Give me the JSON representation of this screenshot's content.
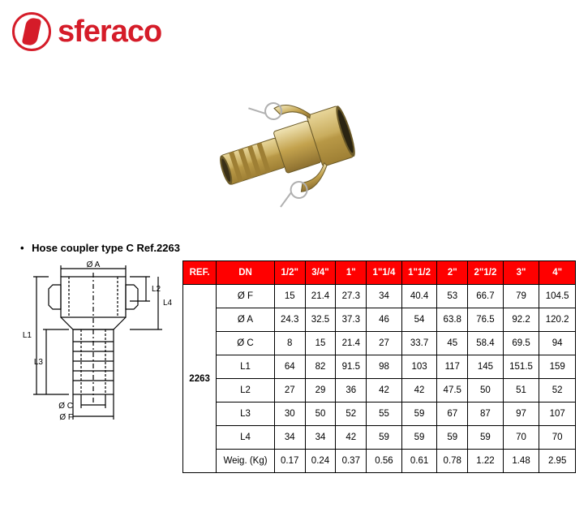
{
  "brand": "sferaco",
  "title": "Hose coupler type C Ref.2263",
  "colors": {
    "brand": "#d51c29",
    "header_bg": "#ff0000",
    "header_fg": "#ffffff",
    "border": "#000000"
  },
  "table": {
    "headers": [
      "REF.",
      "DN",
      "1/2\"",
      "3/4\"",
      "1\"",
      "1\"1/4",
      "1\"1/2",
      "2\"",
      "2\"1/2",
      "3\"",
      "4\""
    ],
    "ref": "2263",
    "rows": [
      {
        "label": "Ø F",
        "values": [
          "15",
          "21.4",
          "27.3",
          "34",
          "40.4",
          "53",
          "66.7",
          "79",
          "104.5"
        ]
      },
      {
        "label": "Ø A",
        "values": [
          "24.3",
          "32.5",
          "37.3",
          "46",
          "54",
          "63.8",
          "76.5",
          "92.2",
          "120.2"
        ]
      },
      {
        "label": "Ø C",
        "values": [
          "8",
          "15",
          "21.4",
          "27",
          "33.7",
          "45",
          "58.4",
          "69.5",
          "94"
        ]
      },
      {
        "label": "L1",
        "values": [
          "64",
          "82",
          "91.5",
          "98",
          "103",
          "117",
          "145",
          "151.5",
          "159"
        ]
      },
      {
        "label": "L2",
        "values": [
          "27",
          "29",
          "36",
          "42",
          "42",
          "47.5",
          "50",
          "51",
          "52"
        ]
      },
      {
        "label": "L3",
        "values": [
          "30",
          "50",
          "52",
          "55",
          "59",
          "67",
          "87",
          "97",
          "107"
        ]
      },
      {
        "label": "L4",
        "values": [
          "34",
          "34",
          "42",
          "59",
          "59",
          "59",
          "59",
          "70",
          "70"
        ]
      },
      {
        "label": "Weig. (Kg)",
        "values": [
          "0.17",
          "0.24",
          "0.37",
          "0.56",
          "0.61",
          "0.78",
          "1.22",
          "1.48",
          "2.95"
        ]
      }
    ]
  },
  "diagram_labels": {
    "oa": "Ø A",
    "oc": "Ø C",
    "of": "Ø F",
    "l1": "L1",
    "l2": "L2",
    "l3": "L3",
    "l4": "L4"
  }
}
